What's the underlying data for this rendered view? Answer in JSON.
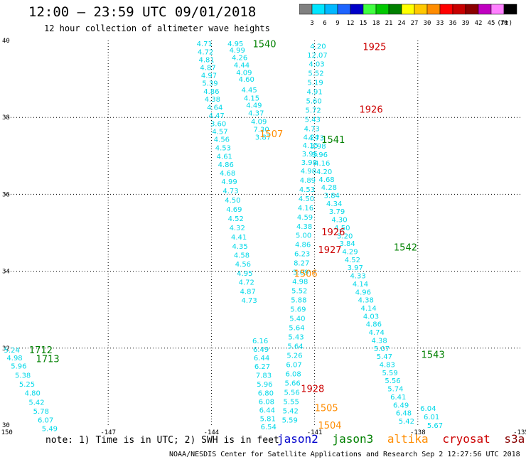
{
  "header": {
    "title": "12:00 – 23:59 UTC 09/01/2018",
    "subtitle": "12 hour collection of altimeter wave heights"
  },
  "colorbar": {
    "unit": "(ft)",
    "labels": [
      "3",
      "6",
      "9",
      "12",
      "15",
      "18",
      "21",
      "24",
      "27",
      "30",
      "33",
      "36",
      "39",
      "42",
      "45",
      "70"
    ],
    "colors": [
      "#808080",
      "#00e5ff",
      "#00b8ff",
      "#1e64ff",
      "#0000c8",
      "#40ff40",
      "#00c800",
      "#008000",
      "#ffff00",
      "#ffc800",
      "#ff8c00",
      "#ff0000",
      "#c80000",
      "#8b0000",
      "#c000c0",
      "#ff80ff",
      "#000000"
    ]
  },
  "note": "note:  1) Time is in UTC;  2) SWH is in feet",
  "legend": [
    {
      "name": "jason2",
      "color": "#0000cc"
    },
    {
      "name": "jason3",
      "color": "#008000"
    },
    {
      "name": "altika",
      "color": "#ff8c00"
    },
    {
      "name": "cryosat",
      "color": "#cc0000"
    },
    {
      "name": "s3a",
      "color": "#880000"
    }
  ],
  "footer": "NOAA/NESDIS Center for Satellite Applications and Research     Sep  2 12:27:56 UTC 2018",
  "chart_data": {
    "type": "scatter",
    "xlim": [
      -150,
      -135
    ],
    "ylim": [
      30,
      40
    ],
    "x_ticks": [
      "-150",
      "-147",
      "-144",
      "-141",
      "-138",
      "-135"
    ],
    "y_ticks": [
      "30",
      "32",
      "34",
      "36",
      "38",
      "40"
    ],
    "grid": true,
    "wave_height_color": "#00d8e8",
    "track_labels": [
      {
        "text": "1540",
        "lon": -142.8,
        "lat": 39.92,
        "color": "#008000"
      },
      {
        "text": "1925",
        "lon": -139.6,
        "lat": 39.84,
        "color": "#cc0000"
      },
      {
        "text": "1926",
        "lon": -139.7,
        "lat": 38.22,
        "color": "#cc0000"
      },
      {
        "text": "1507",
        "lon": -142.6,
        "lat": 37.58,
        "color": "#ff8c00"
      },
      {
        "text": "1541",
        "lon": -140.8,
        "lat": 37.43,
        "color": "#008000"
      },
      {
        "text": "1926",
        "lon": -140.8,
        "lat": 35.03,
        "color": "#cc0000"
      },
      {
        "text": "1927",
        "lon": -140.9,
        "lat": 34.57,
        "color": "#cc0000"
      },
      {
        "text": "1542",
        "lon": -138.7,
        "lat": 34.63,
        "color": "#008000"
      },
      {
        "text": "1506",
        "lon": -141.6,
        "lat": 33.95,
        "color": "#ff8c00"
      },
      {
        "text": "1543",
        "lon": -137.9,
        "lat": 31.84,
        "color": "#008000"
      },
      {
        "text": "1712",
        "lon": -149.3,
        "lat": 31.96,
        "color": "#008000"
      },
      {
        "text": "1713",
        "lon": -149.1,
        "lat": 31.73,
        "color": "#008000"
      },
      {
        "text": "1928",
        "lon": -141.4,
        "lat": 30.95,
        "color": "#cc0000"
      },
      {
        "text": "1505",
        "lon": -141.0,
        "lat": 30.45,
        "color": "#ff8c00"
      },
      {
        "text": "1504",
        "lon": -140.9,
        "lat": 30.0,
        "color": "#ff8c00"
      }
    ],
    "tracks": [
      {
        "name": "1540a",
        "points": [
          [
            -144.2,
            39.93,
            4.71
          ],
          [
            -144.17,
            39.71,
            4.72
          ],
          [
            -144.14,
            39.51,
            4.81
          ],
          [
            -144.1,
            39.31,
            4.87
          ],
          [
            -144.07,
            39.1,
            4.97
          ],
          [
            -144.04,
            38.9,
            5.39
          ],
          [
            -144.0,
            38.69,
            4.86
          ],
          [
            -143.97,
            38.48,
            4.38
          ],
          [
            -143.9,
            38.27,
            4.64
          ],
          [
            -143.85,
            38.06,
            4.47
          ],
          [
            -143.8,
            37.85,
            3.6
          ],
          [
            -143.75,
            37.64,
            4.57
          ],
          [
            -143.7,
            37.44,
            4.56
          ],
          [
            -143.66,
            37.22,
            4.53
          ],
          [
            -143.62,
            37.0,
            4.61
          ],
          [
            -143.58,
            36.78,
            4.86
          ],
          [
            -143.53,
            36.56,
            4.68
          ],
          [
            -143.48,
            36.34,
            4.99
          ],
          [
            -143.44,
            36.1,
            4.73
          ],
          [
            -143.38,
            35.86,
            4.5
          ],
          [
            -143.34,
            35.62,
            4.69
          ],
          [
            -143.29,
            35.38,
            4.52
          ],
          [
            -143.25,
            35.14,
            4.32
          ],
          [
            -143.2,
            34.9,
            4.41
          ],
          [
            -143.17,
            34.66,
            4.35
          ],
          [
            -143.12,
            34.43,
            4.58
          ],
          [
            -143.08,
            34.2,
            4.56
          ],
          [
            -143.03,
            33.96,
            4.95
          ],
          [
            -142.98,
            33.72,
            4.72
          ],
          [
            -142.94,
            33.48,
            4.87
          ],
          [
            -142.9,
            33.25,
            4.73
          ]
        ]
      },
      {
        "name": "1540b",
        "points": [
          [
            -143.3,
            39.93,
            4.95
          ],
          [
            -143.25,
            39.76,
            4.99
          ],
          [
            -143.18,
            39.57,
            4.26
          ],
          [
            -143.12,
            39.37,
            4.44
          ],
          [
            -143.05,
            39.18,
            4.09
          ],
          [
            -142.98,
            39.0,
            4.6
          ],
          [
            -142.9,
            38.72,
            4.45
          ],
          [
            -142.83,
            38.51,
            4.15
          ],
          [
            -142.76,
            38.33,
            4.49
          ],
          [
            -142.7,
            38.12,
            4.37
          ],
          [
            -142.62,
            37.9,
            4.09
          ],
          [
            -142.55,
            37.7,
            7.3
          ],
          [
            -142.5,
            37.5,
            3.87
          ]
        ]
      },
      {
        "name": "1541",
        "points": [
          [
            -140.9,
            39.86,
            4.2
          ],
          [
            -140.92,
            39.63,
            12.07
          ],
          [
            -140.94,
            39.4,
            4.03
          ],
          [
            -140.96,
            39.16,
            5.52
          ],
          [
            -140.98,
            38.92,
            5.19
          ],
          [
            -141.0,
            38.68,
            4.91
          ],
          [
            -141.02,
            38.44,
            5.6
          ],
          [
            -141.04,
            38.2,
            5.72
          ],
          [
            -141.06,
            37.96,
            5.43
          ],
          [
            -141.08,
            37.72,
            4.73
          ],
          [
            -141.1,
            37.5,
            4.24
          ],
          [
            -141.12,
            37.28,
            4.15
          ],
          [
            -141.14,
            37.06,
            3.96
          ],
          [
            -141.16,
            36.84,
            3.98
          ],
          [
            -141.18,
            36.62,
            4.98
          ],
          [
            -141.2,
            36.38,
            4.89
          ],
          [
            -141.22,
            36.14,
            4.53
          ],
          [
            -141.24,
            35.9,
            4.5
          ],
          [
            -141.26,
            35.66,
            4.16
          ],
          [
            -141.28,
            35.42,
            4.59
          ],
          [
            -141.3,
            35.18,
            4.38
          ],
          [
            -141.32,
            34.94,
            5.0
          ],
          [
            -141.34,
            34.7,
            4.86
          ],
          [
            -141.36,
            34.46,
            6.23
          ],
          [
            -141.38,
            34.22,
            8.27
          ],
          [
            -141.4,
            33.98,
            5.09
          ],
          [
            -141.42,
            33.74,
            4.98
          ],
          [
            -141.44,
            33.5,
            5.52
          ],
          [
            -141.46,
            33.26,
            5.88
          ],
          [
            -141.48,
            33.02,
            5.69
          ],
          [
            -141.5,
            32.78,
            5.4
          ],
          [
            -141.52,
            32.54,
            5.64
          ],
          [
            -141.54,
            32.3,
            5.43
          ],
          [
            -141.56,
            32.06,
            5.64
          ],
          [
            -141.58,
            31.82,
            5.26
          ],
          [
            -141.6,
            31.58,
            6.07
          ],
          [
            -141.62,
            31.34,
            6.08
          ],
          [
            -141.64,
            31.1,
            5.66
          ],
          [
            -141.66,
            30.86,
            5.56
          ],
          [
            -141.68,
            30.62,
            5.55
          ],
          [
            -141.7,
            30.38,
            5.42
          ],
          [
            -141.72,
            30.14,
            5.59
          ]
        ]
      },
      {
        "name": "1542",
        "points": [
          [
            -140.95,
            37.48,
            4.73
          ],
          [
            -140.9,
            37.26,
            3.98
          ],
          [
            -140.85,
            37.04,
            3.96
          ],
          [
            -140.78,
            36.82,
            4.16
          ],
          [
            -140.72,
            36.6,
            4.2
          ],
          [
            -140.65,
            36.4,
            4.68
          ],
          [
            -140.58,
            36.19,
            4.28
          ],
          [
            -140.5,
            35.98,
            3.84
          ],
          [
            -140.43,
            35.77,
            4.34
          ],
          [
            -140.35,
            35.56,
            3.79
          ],
          [
            -140.28,
            35.35,
            4.3
          ],
          [
            -140.2,
            35.14,
            4.5
          ],
          [
            -140.12,
            34.93,
            3.2
          ],
          [
            -140.05,
            34.73,
            3.84
          ],
          [
            -139.97,
            34.52,
            4.29
          ],
          [
            -139.9,
            34.31,
            4.52
          ],
          [
            -139.82,
            34.1,
            3.97
          ],
          [
            -139.74,
            33.89,
            4.33
          ],
          [
            -139.67,
            33.68,
            4.14
          ],
          [
            -139.59,
            33.47,
            4.96
          ],
          [
            -139.51,
            33.26,
            4.38
          ],
          [
            -139.43,
            33.05,
            4.14
          ],
          [
            -139.36,
            32.84,
            4.03
          ],
          [
            -139.28,
            32.63,
            4.86
          ],
          [
            -139.2,
            32.42,
            4.74
          ],
          [
            -139.12,
            32.21,
            4.38
          ],
          [
            -139.05,
            32.0,
            5.07
          ],
          [
            -138.97,
            31.79,
            5.47
          ],
          [
            -138.89,
            31.58,
            4.83
          ],
          [
            -138.81,
            31.37,
            5.59
          ],
          [
            -138.73,
            31.16,
            5.56
          ],
          [
            -138.65,
            30.95,
            5.74
          ],
          [
            -138.57,
            30.74,
            6.41
          ],
          [
            -138.49,
            30.53,
            6.49
          ],
          [
            -138.41,
            30.32,
            6.48
          ],
          [
            -138.33,
            30.11,
            5.42
          ]
        ]
      },
      {
        "name": "1543tail",
        "points": [
          [
            -137.7,
            30.44,
            6.04
          ],
          [
            -137.6,
            30.22,
            6.01
          ],
          [
            -137.5,
            30.0,
            5.67
          ]
        ]
      },
      {
        "name": "1926b",
        "points": [
          [
            -142.58,
            32.2,
            6.16
          ],
          [
            -142.56,
            31.98,
            6.49
          ],
          [
            -142.54,
            31.76,
            6.44
          ],
          [
            -142.52,
            31.53,
            6.27
          ],
          [
            -142.48,
            31.3,
            7.83
          ],
          [
            -142.45,
            31.07,
            5.96
          ],
          [
            -142.42,
            30.84,
            6.8
          ],
          [
            -142.4,
            30.62,
            6.08
          ],
          [
            -142.38,
            30.4,
            6.44
          ],
          [
            -142.36,
            30.18,
            5.81
          ],
          [
            -142.34,
            29.96,
            6.54
          ]
        ]
      },
      {
        "name": "1712",
        "points": [
          [
            -149.8,
            31.96,
            5.24
          ],
          [
            -149.72,
            31.76,
            4.98
          ],
          [
            -149.6,
            31.54,
            5.96
          ],
          [
            -149.48,
            31.3,
            5.38
          ],
          [
            -149.36,
            31.07,
            5.25
          ],
          [
            -149.2,
            30.84,
            4.8
          ],
          [
            -149.08,
            30.6,
            5.42
          ],
          [
            -148.95,
            30.37,
            5.78
          ],
          [
            -148.82,
            30.14,
            6.07
          ],
          [
            -148.7,
            29.92,
            5.49
          ]
        ]
      }
    ]
  }
}
